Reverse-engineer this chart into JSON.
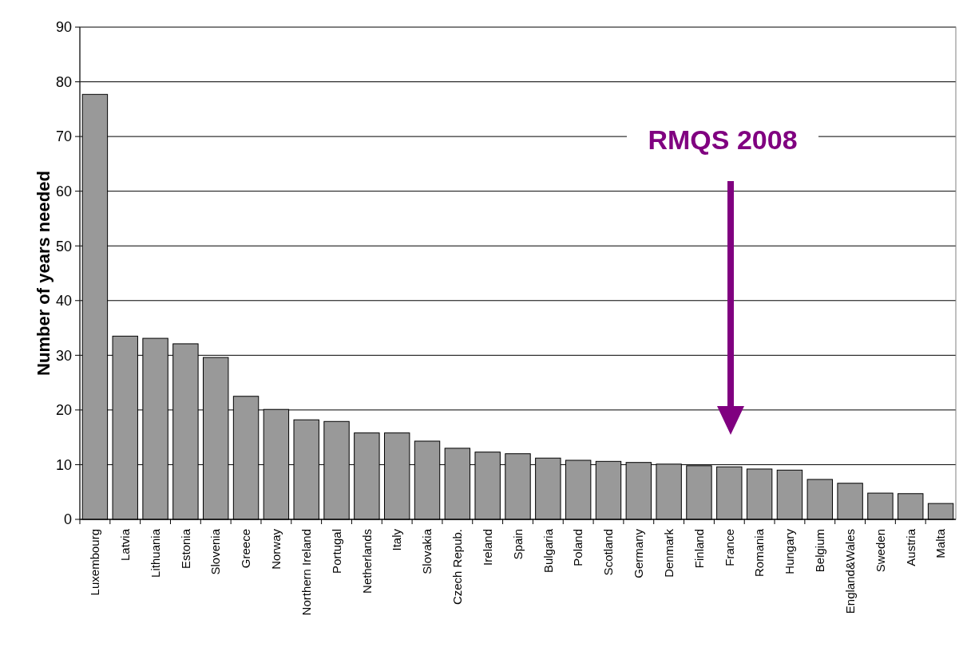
{
  "chart_data": {
    "type": "bar",
    "ylabel": "Number of years needed",
    "categories": [
      "Luxembourg",
      "Latvia",
      "Lithuania",
      "Estonia",
      "Slovenia",
      "Greece",
      "Norway",
      "Northern Ireland",
      "Portugal",
      "Netherlands",
      "Italy",
      "Slovakia",
      "Czech Repub.",
      "Ireland",
      "Spain",
      "Bulgaria",
      "Poland",
      "Scotland",
      "Germany",
      "Denmark",
      "Finland",
      "France",
      "Romania",
      "Hungary",
      "Belgium",
      "England&Wales",
      "Sweden",
      "Austria",
      "Malta"
    ],
    "values": [
      77.7,
      33.5,
      33.1,
      32.1,
      29.6,
      22.5,
      20.1,
      18.2,
      17.9,
      15.8,
      15.8,
      14.3,
      13.0,
      12.3,
      12.0,
      11.2,
      10.8,
      10.6,
      10.4,
      10.1,
      9.8,
      9.6,
      9.2,
      9.0,
      7.3,
      6.6,
      4.8,
      4.7,
      2.9
    ],
    "color": "#999999",
    "ylim": [
      0,
      90
    ],
    "yticks": [
      0,
      10,
      20,
      30,
      40,
      50,
      60,
      70,
      80,
      90
    ],
    "grid": "y",
    "annotations": [
      "RMQS 2008"
    ]
  }
}
